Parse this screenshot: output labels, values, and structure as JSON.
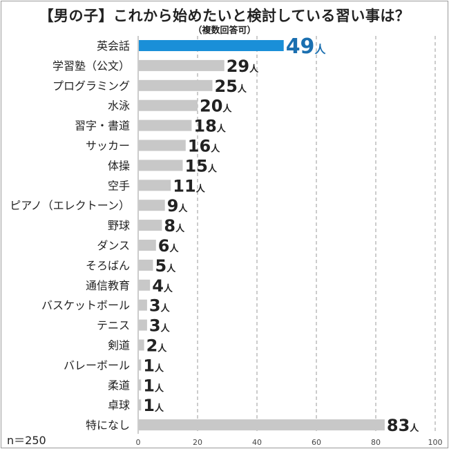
{
  "title": "【男の子】これから始めたいと検討している習い事は？",
  "subtitle": "（複数回答可）",
  "n_label": "n＝250",
  "colors": {
    "highlight": "#1a8fd8",
    "bar": "#c8c8c8",
    "grid": "#999999",
    "text": "#222222",
    "value_highlight": "#1a6fb0"
  },
  "chart_data": {
    "type": "bar",
    "orientation": "horizontal",
    "categories": [
      "英会話",
      "学習塾（公文）",
      "プログラミング",
      "水泳",
      "習字・書道",
      "サッカー",
      "体操",
      "空手",
      "ピアノ（エレクトーン）",
      "野球",
      "ダンス",
      "そろばん",
      "通信教育",
      "バスケットボール",
      "テニス",
      "剣道",
      "バレーボール",
      "柔道",
      "卓球",
      "特になし"
    ],
    "values": [
      49,
      29,
      25,
      20,
      18,
      16,
      15,
      11,
      9,
      8,
      6,
      5,
      4,
      3,
      3,
      2,
      1,
      1,
      1,
      83
    ],
    "unit": "人",
    "highlight_index": 0,
    "xlim": [
      0,
      100
    ],
    "xticks": [
      0,
      20,
      40,
      60,
      80,
      100
    ],
    "grid": true
  }
}
